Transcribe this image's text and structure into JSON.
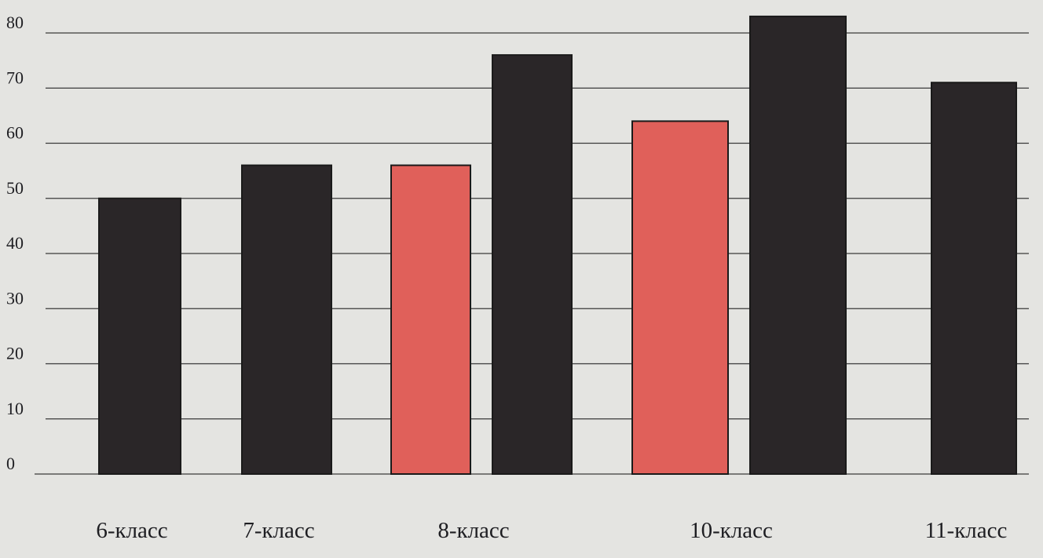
{
  "chart_data": {
    "type": "bar",
    "categories": [
      "6-класс",
      "7-класс",
      "8-класс",
      "10-класс",
      "11-класс"
    ],
    "series": [
      {
        "values": [
          50,
          56,
          76,
          83,
          71
        ]
      },
      {
        "values": [
          null,
          null,
          56,
          64,
          null
        ]
      }
    ],
    "y_ticks": [
      "0",
      "10",
      "20",
      "30",
      "40",
      "50",
      "60",
      "70",
      "80"
    ],
    "ylim": [
      0,
      80
    ],
    "grid": true,
    "colors": {
      "dark": "#2a2628",
      "highlight": "#e0605a",
      "grid": "#3a3a3a"
    }
  }
}
